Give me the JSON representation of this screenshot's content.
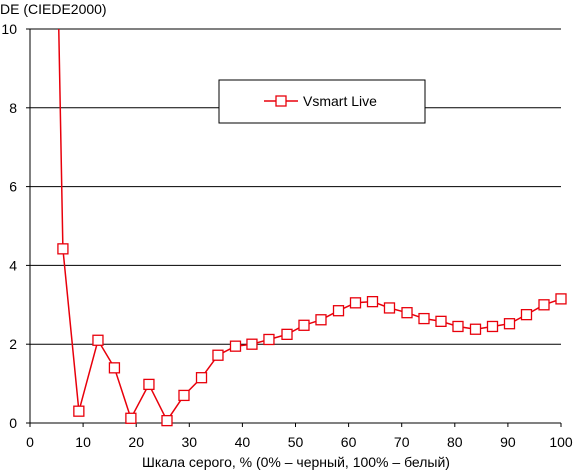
{
  "chart_data": {
    "type": "line",
    "ylabel": "DE (CIEDE2000)",
    "xlabel": "Шкала серого, % (0% – черный, 100% – белый)",
    "xlim": [
      0,
      100
    ],
    "ylim": [
      0,
      10
    ],
    "xticks": [
      "0",
      "10",
      "20",
      "30",
      "40",
      "50",
      "60",
      "70",
      "80",
      "90",
      "100"
    ],
    "yticks": [
      "0",
      "2",
      "4",
      "6",
      "8",
      "10"
    ],
    "grid": "horizontal",
    "legend_position": "top-center",
    "series": [
      {
        "name": "Vsmart Live",
        "color": "#e8000b",
        "marker": "square",
        "x": [
          5.4,
          6.2,
          9.2,
          12.8,
          15.9,
          19.0,
          22.4,
          25.8,
          29.0,
          32.3,
          35.4,
          38.7,
          41.8,
          45.0,
          48.4,
          51.6,
          54.8,
          58.1,
          61.3,
          64.5,
          67.7,
          71.0,
          74.2,
          77.4,
          80.6,
          83.9,
          87.1,
          90.3,
          93.5,
          96.8,
          100.0
        ],
        "y": [
          10.1,
          4.42,
          0.3,
          2.1,
          1.4,
          0.12,
          0.98,
          0.06,
          0.7,
          1.15,
          1.72,
          1.95,
          2.0,
          2.12,
          2.25,
          2.48,
          2.62,
          2.85,
          3.05,
          3.08,
          2.92,
          2.8,
          2.65,
          2.58,
          2.45,
          2.38,
          2.45,
          2.52,
          2.75,
          3.0,
          3.15
        ]
      }
    ]
  }
}
